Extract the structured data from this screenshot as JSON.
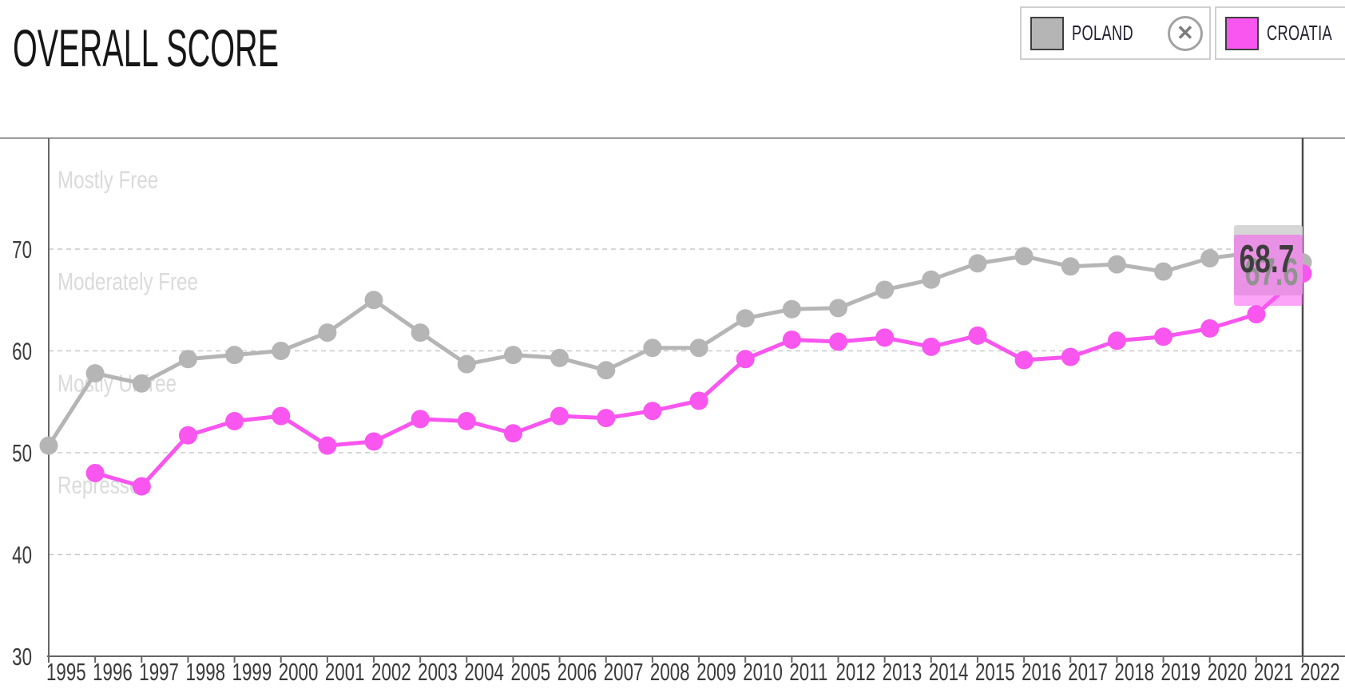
{
  "title": "OVERALL SCORE",
  "legend": {
    "close_glyph": "✕",
    "items": [
      {
        "label": "POLAND",
        "color": "#b5b5b5"
      },
      {
        "label": "CROATIA",
        "color": "#f955ef"
      }
    ]
  },
  "tooltip": {
    "poland_value": "68.7",
    "croatia_value": "67.6"
  },
  "chart_data": {
    "type": "line",
    "title": "OVERALL SCORE",
    "x": [
      1995,
      1996,
      1997,
      1998,
      1999,
      2000,
      2001,
      2002,
      2003,
      2004,
      2005,
      2006,
      2007,
      2008,
      2009,
      2010,
      2011,
      2012,
      2013,
      2014,
      2015,
      2016,
      2017,
      2018,
      2019,
      2020,
      2021,
      2022
    ],
    "series": [
      {
        "name": "POLAND",
        "color": "#b5b5b5",
        "values": [
          50.7,
          57.8,
          56.8,
          59.2,
          59.6,
          60.0,
          61.8,
          65.0,
          61.8,
          58.7,
          59.6,
          59.3,
          58.1,
          60.3,
          60.3,
          63.2,
          64.1,
          64.2,
          66.0,
          67.0,
          68.6,
          69.3,
          68.3,
          68.5,
          67.8,
          69.1,
          69.7,
          68.7
        ]
      },
      {
        "name": "CROATIA",
        "color": "#f955ef",
        "values": [
          null,
          48.0,
          46.7,
          51.7,
          53.1,
          53.6,
          50.7,
          51.1,
          53.3,
          53.1,
          51.9,
          53.6,
          53.4,
          54.1,
          55.1,
          59.2,
          61.1,
          60.9,
          61.3,
          60.4,
          61.5,
          59.1,
          59.4,
          61.0,
          61.4,
          62.2,
          63.6,
          67.6
        ]
      }
    ],
    "ylim": [
      30,
      81
    ],
    "yticks": [
      70,
      60,
      50,
      40,
      30
    ],
    "zone_labels": [
      {
        "label": "Mostly Free",
        "boundary": 80
      },
      {
        "label": "Moderately Free",
        "boundary": 70
      },
      {
        "label": "Mostly Unfree",
        "boundary": 60
      },
      {
        "label": "Repressed",
        "boundary": 50
      }
    ],
    "grid": "horizontal-dashed",
    "legend_position": "top-right",
    "hover": {
      "year": 2022,
      "POLAND": 68.7,
      "CROATIA": 67.6
    }
  }
}
